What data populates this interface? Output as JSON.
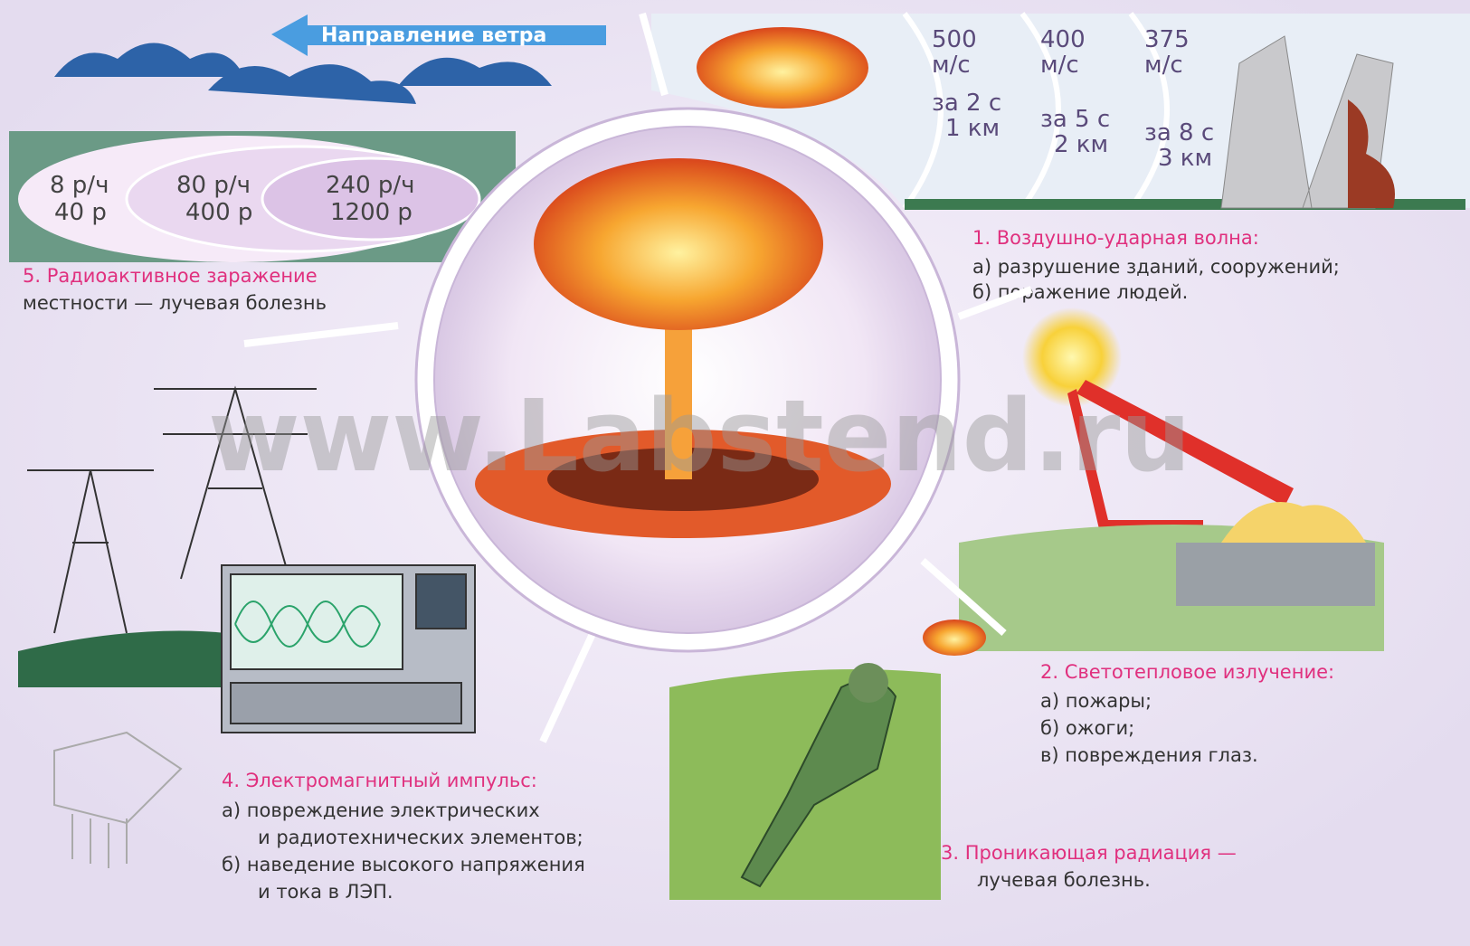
{
  "watermark": "www.Labstend.ru",
  "wind": {
    "label": "Направление ветра"
  },
  "contamination": {
    "zones": [
      {
        "rate": "8 р/ч",
        "dose": "40 р"
      },
      {
        "rate": "80 р/ч",
        "dose": "400 р"
      },
      {
        "rate": "240 р/ч",
        "dose": "1200 р"
      }
    ],
    "title": "5. Радиоактивное заражение",
    "text": "местности — лучевая болезнь"
  },
  "shock_wave": {
    "speeds": [
      {
        "speed": "500",
        "unit": "м/с",
        "time": "за 2 с",
        "distance": "1 км"
      },
      {
        "speed": "400",
        "unit": "м/с",
        "time": "за 5 с",
        "distance": "2 км"
      },
      {
        "speed": "375",
        "unit": "м/с",
        "time": "за 8 с",
        "distance": "3 км"
      }
    ],
    "title": "1. Воздушно-ударная волна:",
    "items": [
      "а) разрушение зданий, сооружений;",
      "б) поражение людей."
    ]
  },
  "light": {
    "title": "2. Светотепловое излучение:",
    "items": [
      "а) пожары;",
      "б) ожоги;",
      "в) повреждения глаз."
    ]
  },
  "radiation": {
    "title": "3. Проникающая радиация —",
    "text": "лучевая болезнь."
  },
  "emp": {
    "title": "4. Электромагнитный импульс:",
    "items": [
      "а) повреждение электрических",
      "и радиотехнических элементов;",
      "б) наведение высокого напряжения",
      "и тока в ЛЭП."
    ]
  }
}
